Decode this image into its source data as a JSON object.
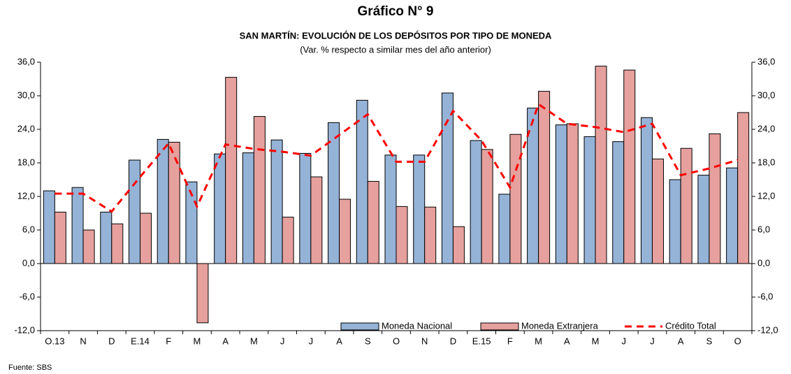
{
  "chart_data": {
    "type": "bar-line",
    "title": "Gráfico N° 9",
    "subtitle": "SAN MARTÍN: EVOLUCIÓN DE LOS DEPÓSITOS POR TIPO DE MONEDA",
    "note": "(Var. % respecto a similar mes del año anterior)",
    "source": "Fuente: SBS",
    "categories": [
      "O.13",
      "N",
      "D",
      "E.14",
      "F",
      "M",
      "A",
      "M",
      "J",
      "J",
      "A",
      "S",
      "O",
      "N",
      "D",
      "E.15",
      "F",
      "M",
      "A",
      "M",
      "J",
      "J",
      "A",
      "S",
      "O"
    ],
    "series": [
      {
        "name": "Moneda Nacional",
        "kind": "bar",
        "color": "#95B3D7",
        "values": [
          13.0,
          13.6,
          9.2,
          18.5,
          22.2,
          14.6,
          19.6,
          19.8,
          22.1,
          19.7,
          25.2,
          29.2,
          19.4,
          19.4,
          30.5,
          22.0,
          12.4,
          27.8,
          24.8,
          22.7,
          21.8,
          26.1,
          15.0,
          15.8,
          17.1
        ]
      },
      {
        "name": "Moneda Extranjera",
        "kind": "bar",
        "color": "#E6A09E",
        "values": [
          9.2,
          6.0,
          7.1,
          9.0,
          21.7,
          -10.6,
          33.3,
          26.3,
          8.3,
          15.5,
          11.5,
          14.7,
          10.2,
          10.1,
          6.6,
          20.4,
          23.1,
          30.8,
          25.0,
          35.3,
          34.6,
          18.7,
          20.6,
          23.2,
          27.0
        ]
      },
      {
        "name": "Crédito Total",
        "kind": "line",
        "color": "#FF0000",
        "values": [
          12.5,
          12.5,
          9.3,
          15.5,
          21.5,
          10.2,
          21.3,
          20.5,
          20.0,
          19.3,
          23.0,
          26.7,
          18.2,
          18.2,
          27.3,
          22.0,
          13.6,
          28.5,
          25.0,
          24.4,
          23.5,
          25.0,
          15.8,
          17.0,
          18.5
        ]
      }
    ],
    "ylim": [
      -12,
      36
    ],
    "yticks": [
      {
        "value": -12,
        "label": "-12,0"
      },
      {
        "value": -6,
        "label": "-6,0"
      },
      {
        "value": 0,
        "label": "0,0"
      },
      {
        "value": 6,
        "label": "6,0"
      },
      {
        "value": 12,
        "label": "12,0"
      },
      {
        "value": 18,
        "label": "18,0"
      },
      {
        "value": 24,
        "label": "24,0"
      },
      {
        "value": 30,
        "label": "30,0"
      },
      {
        "value": 36,
        "label": "36,0"
      }
    ],
    "y2lim": [
      -12,
      36
    ],
    "y2ticks": [
      {
        "value": -12,
        "label": "-12,0"
      },
      {
        "value": -6,
        "label": "-6,0"
      },
      {
        "value": 0,
        "label": "0,0"
      },
      {
        "value": 6,
        "label": "6,0"
      },
      {
        "value": 12,
        "label": "12,0"
      },
      {
        "value": 18,
        "label": "18,0"
      },
      {
        "value": 24,
        "label": "24,0"
      },
      {
        "value": 30,
        "label": "30,0"
      },
      {
        "value": 36,
        "label": "36,0"
      }
    ],
    "legend": "bottom-right"
  }
}
